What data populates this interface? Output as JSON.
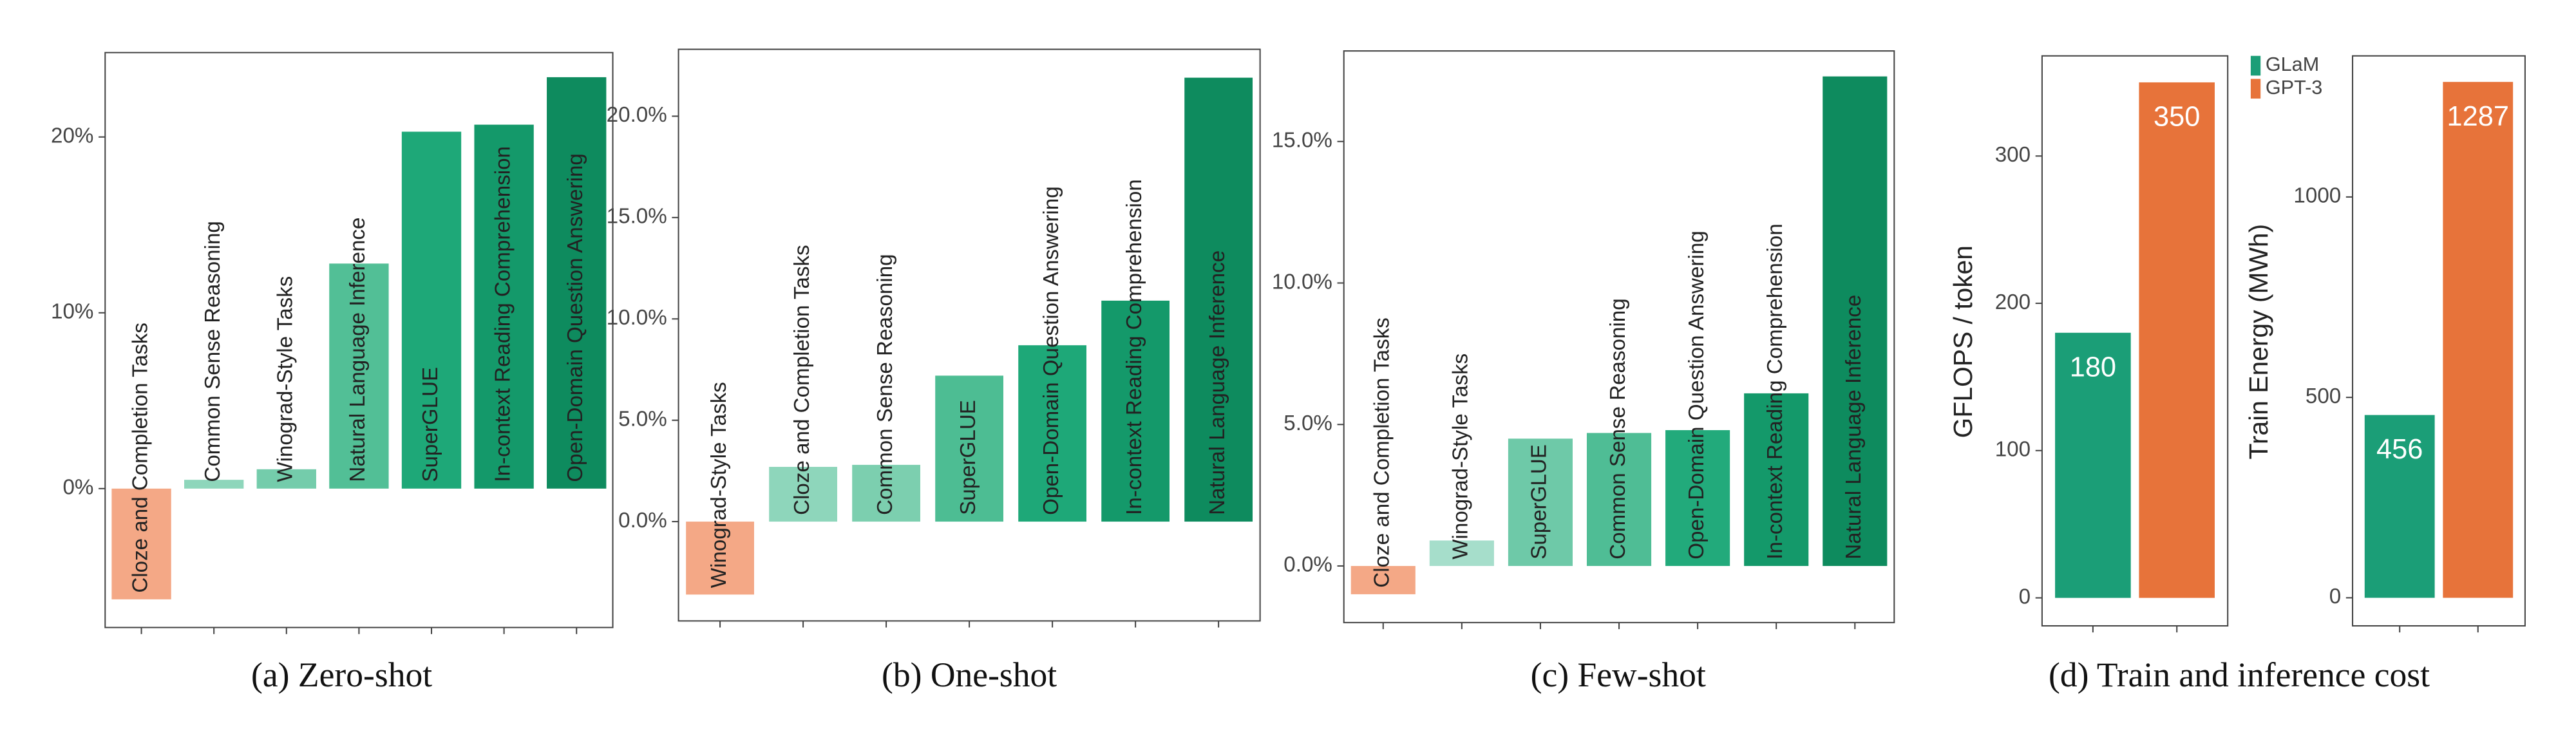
{
  "chart_data": [
    {
      "type": "bar",
      "caption": "(a) Zero-shot",
      "categories": [
        "Cloze and Completion Tasks",
        "Common Sense Reasoning",
        "Winograd-Style Tasks",
        "Natural Language Inference",
        "SuperGLUE",
        "In-context Reading Comprehension",
        "Open-Domain Question Answering"
      ],
      "values": [
        -6.3,
        0.5,
        1.1,
        12.8,
        20.3,
        20.7,
        23.4
      ],
      "colors": [
        "#f4a886",
        "#8ed6bb",
        "#74ccab",
        "#52bf96",
        "#1ea878",
        "#14996a",
        "#0e8b5e"
      ],
      "ylim": [
        -7.9,
        24.8
      ],
      "yticks": [
        {
          "value": 0,
          "label": "0%"
        },
        {
          "value": 10,
          "label": "10%"
        },
        {
          "value": 20,
          "label": "20%"
        }
      ]
    },
    {
      "type": "bar",
      "caption": "(b) One-shot",
      "categories": [
        "Winograd-Style Tasks",
        "Cloze and Completion Tasks",
        "Common Sense Reasoning",
        "SuperGLUE",
        "Open-Domain Question Answering",
        "In-context Reading Comprehension",
        "Natural Language Inference"
      ],
      "values": [
        -3.6,
        2.7,
        2.8,
        7.2,
        8.7,
        10.9,
        21.9
      ],
      "colors": [
        "#f4a886",
        "#8ed6bb",
        "#7ccfaf",
        "#4dbd93",
        "#1ea878",
        "#14996a",
        "#0e8b5e"
      ],
      "ylim": [
        -4.9,
        23.3
      ],
      "yticks": [
        {
          "value": 0,
          "label": "0.0%"
        },
        {
          "value": 5,
          "label": "5.0%"
        },
        {
          "value": 10,
          "label": "10.0%"
        },
        {
          "value": 15,
          "label": "15.0%"
        },
        {
          "value": 20,
          "label": "20.0%"
        }
      ]
    },
    {
      "type": "bar",
      "caption": "(c) Few-shot",
      "categories": [
        "Cloze and Completion Tasks",
        "Winograd-Style Tasks",
        "SuperGLUE",
        "Common Sense Reasoning",
        "Open-Domain Question Answering",
        "In-context Reading Comprehension",
        "Natural Language Inference"
      ],
      "values": [
        -1.0,
        0.9,
        4.5,
        4.7,
        4.8,
        6.1,
        17.3
      ],
      "colors": [
        "#f4a886",
        "#a6decb",
        "#6ec9a8",
        "#4fbd95",
        "#22aa7b",
        "#14996a",
        "#0e8b5e"
      ],
      "ylim": [
        -2.0,
        18.2
      ],
      "yticks": [
        {
          "value": 0,
          "label": "0.0%"
        },
        {
          "value": 5,
          "label": "5.0%"
        },
        {
          "value": 10,
          "label": "10.0%"
        },
        {
          "value": 15,
          "label": "15.0%"
        }
      ]
    },
    {
      "type": "bar",
      "caption": "(d) Train and inference cost",
      "ylabel": "GFLOPS / token",
      "categories": [
        null
      ],
      "series": [
        {
          "name": "GLaM",
          "color": "#1b9e77",
          "values": [
            180
          ]
        },
        {
          "name": "GPT-3",
          "color": "#e7733a",
          "values": [
            350
          ]
        }
      ],
      "ylim": [
        -19,
        368
      ],
      "yticks": [
        0,
        100,
        200,
        300
      ]
    },
    {
      "type": "bar",
      "ylabel": "Train Energy (MWh)",
      "categories": [
        null
      ],
      "series": [
        {
          "color": "#1b9e77",
          "values": [
            456
          ]
        },
        {
          "color": "#e7733a",
          "values": [
            1287
          ]
        }
      ],
      "ylim": [
        -70,
        1352
      ],
      "yticks": [
        0,
        500,
        1000
      ]
    }
  ]
}
